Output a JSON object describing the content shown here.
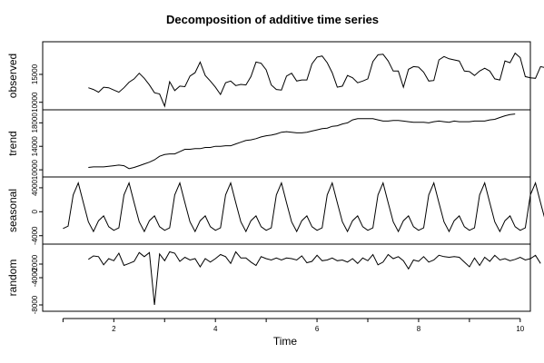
{
  "chart_data": {
    "type": "line",
    "title": "Decomposition of additive time series",
    "xlabel": "Time",
    "xlim": [
      0.6,
      10.2
    ],
    "x_ticks": [
      2,
      4,
      6,
      8,
      10
    ],
    "x_start": 1.0,
    "x_step": 0.1,
    "grid": false,
    "series": [
      {
        "name": "observed",
        "ylim": [
          9300,
          20200
        ],
        "ticks": [
          10000,
          15000
        ],
        "tick_labels": [
          "10000",
          "15000"
        ],
        "values": [
          null,
          null,
          null,
          null,
          null,
          12600,
          12300,
          11800,
          12700,
          12600,
          12200,
          11800,
          12600,
          13600,
          14200,
          15200,
          14300,
          13100,
          11700,
          11500,
          9300,
          13700,
          12100,
          12900,
          12800,
          14700,
          15300,
          17200,
          14800,
          13800,
          12700,
          11400,
          13500,
          13800,
          13000,
          13200,
          13100,
          14600,
          17200,
          17000,
          15800,
          13100,
          12300,
          12200,
          14700,
          15200,
          13800,
          14000,
          14000,
          16900,
          18100,
          18300,
          17100,
          15300,
          12700,
          12900,
          14800,
          14400,
          13500,
          13800,
          14200,
          17300,
          18500,
          18600,
          17400,
          15600,
          15600,
          12700,
          15900,
          16400,
          16300,
          15400,
          13800,
          13900,
          17600,
          18200,
          17800,
          17600,
          17400,
          15600,
          15500,
          14800,
          15600,
          16100,
          15600,
          14200,
          14000,
          17400,
          17100,
          18800,
          18000,
          14600,
          14400,
          14300,
          16400,
          16200,
          15100,
          14600,
          14800,
          17000,
          17600,
          19600,
          17600,
          null,
          null,
          null,
          null,
          null,
          null
        ]
      },
      {
        "name": "trend",
        "ylim": [
          9400,
          19600
        ],
        "ticks": [
          10000,
          14000,
          18000
        ],
        "tick_labels": [
          "10000",
          "14000",
          "18000"
        ],
        "values": [
          null,
          null,
          null,
          null,
          null,
          10400,
          10500,
          10500,
          10500,
          10600,
          10700,
          10800,
          10700,
          10200,
          10400,
          10700,
          11000,
          11300,
          11700,
          12300,
          12600,
          12700,
          12700,
          13100,
          13500,
          13500,
          13600,
          13600,
          13800,
          13800,
          14000,
          14000,
          14100,
          14100,
          14400,
          14700,
          15000,
          15100,
          15300,
          15600,
          15800,
          15900,
          16100,
          16400,
          16500,
          16400,
          16300,
          16300,
          16400,
          16600,
          16800,
          17000,
          17100,
          17400,
          17500,
          17800,
          18000,
          18500,
          18700,
          18700,
          18700,
          18700,
          18500,
          18300,
          18300,
          18400,
          18400,
          18300,
          18200,
          18100,
          18100,
          18100,
          18000,
          18200,
          18300,
          18200,
          18100,
          18300,
          18200,
          18200,
          18200,
          18300,
          18300,
          18300,
          18500,
          18600,
          18900,
          19200,
          19400,
          19500,
          null,
          null,
          null,
          null,
          null,
          null,
          null,
          null,
          null,
          null,
          null,
          null,
          null,
          null,
          null,
          null,
          null,
          null,
          null
        ]
      },
      {
        "name": "seasonal",
        "ylim": [
          -4800,
          5200
        ],
        "ticks": [
          -4000,
          0,
          4000
        ],
        "tick_labels": [
          "-4000",
          "0",
          "4000"
        ],
        "values": [
          -2800,
          -2400,
          2800,
          4800,
          1500,
          -1700,
          -3300,
          -1500,
          -700,
          -2500,
          -3100,
          -2700,
          2800,
          4800,
          1500,
          -1700,
          -3300,
          -1500,
          -700,
          -2500,
          -3100,
          -2700,
          2800,
          4800,
          1500,
          -1700,
          -3300,
          -1500,
          -700,
          -2500,
          -3100,
          -2700,
          2800,
          4800,
          1500,
          -1700,
          -3300,
          -1500,
          -700,
          -2500,
          -3100,
          -2700,
          2800,
          4800,
          1500,
          -1700,
          -3300,
          -1500,
          -700,
          -2500,
          -3100,
          -2700,
          2800,
          4800,
          1500,
          -1700,
          -3300,
          -1500,
          -700,
          -2500,
          -3100,
          -2700,
          2800,
          4800,
          1500,
          -1700,
          -3300,
          -1500,
          -700,
          -2500,
          -3100,
          -2700,
          2800,
          4800,
          1500,
          -1700,
          -3300,
          -1500,
          -700,
          -2500,
          -3100,
          -2700,
          2800,
          4800,
          1500,
          -1700,
          -3300,
          -1500,
          -700,
          -2500,
          -3100,
          -2700,
          2800,
          4800,
          1500,
          -1700,
          -3300,
          -1500,
          -700,
          -2500,
          -3100,
          -2700,
          2800,
          4800,
          1500,
          -1700,
          -3300,
          -1500,
          -700,
          -2500
        ]
      },
      {
        "name": "random",
        "ylim": [
          -8400,
          400
        ],
        "ticks": [
          -8000,
          -4000,
          -2000
        ],
        "tick_labels": [
          "-8000",
          "-4000",
          "-2000"
        ],
        "values": [
          null,
          null,
          null,
          null,
          null,
          -1300,
          -800,
          -900,
          -2100,
          -1200,
          -1500,
          -400,
          -2200,
          -1900,
          -1600,
          -300,
          -900,
          -300,
          -8000,
          -500,
          -1500,
          -200,
          -400,
          -1600,
          -1000,
          -1400,
          -1200,
          -2400,
          -1200,
          -1700,
          -1200,
          -600,
          -900,
          -1900,
          -200,
          -1100,
          -1100,
          -1700,
          -2200,
          -900,
          -1200,
          -1400,
          -1100,
          -1400,
          -1100,
          -1200,
          -1400,
          -800,
          -1800,
          -1600,
          -700,
          -1500,
          -1400,
          -1100,
          -1500,
          -1400,
          -1700,
          -1200,
          -1900,
          -1100,
          -1500,
          -600,
          -2100,
          -1700,
          -600,
          -1200,
          -900,
          -1500,
          -2700,
          -1400,
          -1600,
          -900,
          -1700,
          -1400,
          -700,
          -900,
          -1000,
          -900,
          -1000,
          -1700,
          -2400,
          -1100,
          -2200,
          -1000,
          -1600,
          -700,
          -1400,
          -1200,
          -1500,
          -1300,
          -1000,
          -1400,
          -1200,
          -700,
          -1900,
          null,
          null,
          null,
          null,
          null,
          null,
          null,
          null,
          null,
          null,
          null,
          null,
          null,
          null,
          null
        ]
      }
    ]
  }
}
